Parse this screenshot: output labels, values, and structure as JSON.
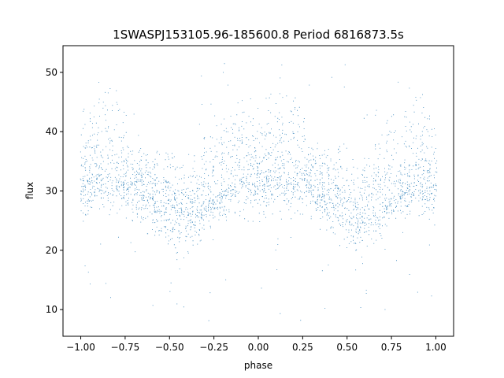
{
  "chart_data": {
    "type": "scatter",
    "title": "1SWASPJ153105.96-185600.8 Period 6816873.5s",
    "xlabel": "phase",
    "ylabel": "flux",
    "xlim": [
      -1.1,
      1.1
    ],
    "ylim": [
      5.5,
      54.5
    ],
    "xticks": [
      -1.0,
      -0.75,
      -0.5,
      -0.25,
      0.0,
      0.25,
      0.5,
      0.75,
      1.0
    ],
    "xtick_labels": [
      "−1.00",
      "−0.75",
      "−0.50",
      "−0.25",
      "0.00",
      "0.25",
      "0.50",
      "0.75",
      "1.00"
    ],
    "yticks": [
      10,
      20,
      30,
      40,
      50
    ],
    "ytick_labels": [
      "10",
      "20",
      "30",
      "40",
      "50"
    ],
    "marker_color": "#1f77b4",
    "grid": false,
    "description_of_data": "Folded light curve; dense vertical clusters of points spanning flux ~17-52, median ~30, symmetric about phase 0 (data repeated for phase -1..0 and 0..1). Dips toward ~18 near phase -0.45/0.55, peaks toward ~40-50 near phase -0.9/0.1 and 0.0-0.1.",
    "profile": {
      "phase": [
        -1.0,
        -0.9,
        -0.8,
        -0.7,
        -0.6,
        -0.5,
        -0.45,
        -0.4,
        -0.3,
        -0.25,
        -0.2,
        -0.1,
        0.0,
        0.1,
        0.2,
        0.3,
        0.4,
        0.5,
        0.55,
        0.6,
        0.7,
        0.75,
        0.8,
        0.9,
        1.0
      ],
      "median_flux": [
        31,
        33,
        32,
        31,
        29,
        28,
        26,
        27,
        28,
        29,
        30,
        32,
        31,
        33,
        32,
        31,
        29,
        28,
        26,
        27,
        28,
        29,
        30,
        32,
        31
      ],
      "low_flux": [
        24,
        25,
        25,
        25,
        22,
        20,
        18,
        19,
        22,
        24,
        25,
        25,
        24,
        25,
        25,
        25,
        22,
        20,
        18,
        19,
        22,
        24,
        25,
        25,
        24
      ],
      "high_flux": [
        43,
        50,
        47,
        40,
        38,
        38,
        34,
        37,
        40,
        44,
        42,
        48,
        43,
        50,
        47,
        40,
        38,
        38,
        34,
        37,
        40,
        44,
        42,
        48,
        43
      ]
    }
  }
}
